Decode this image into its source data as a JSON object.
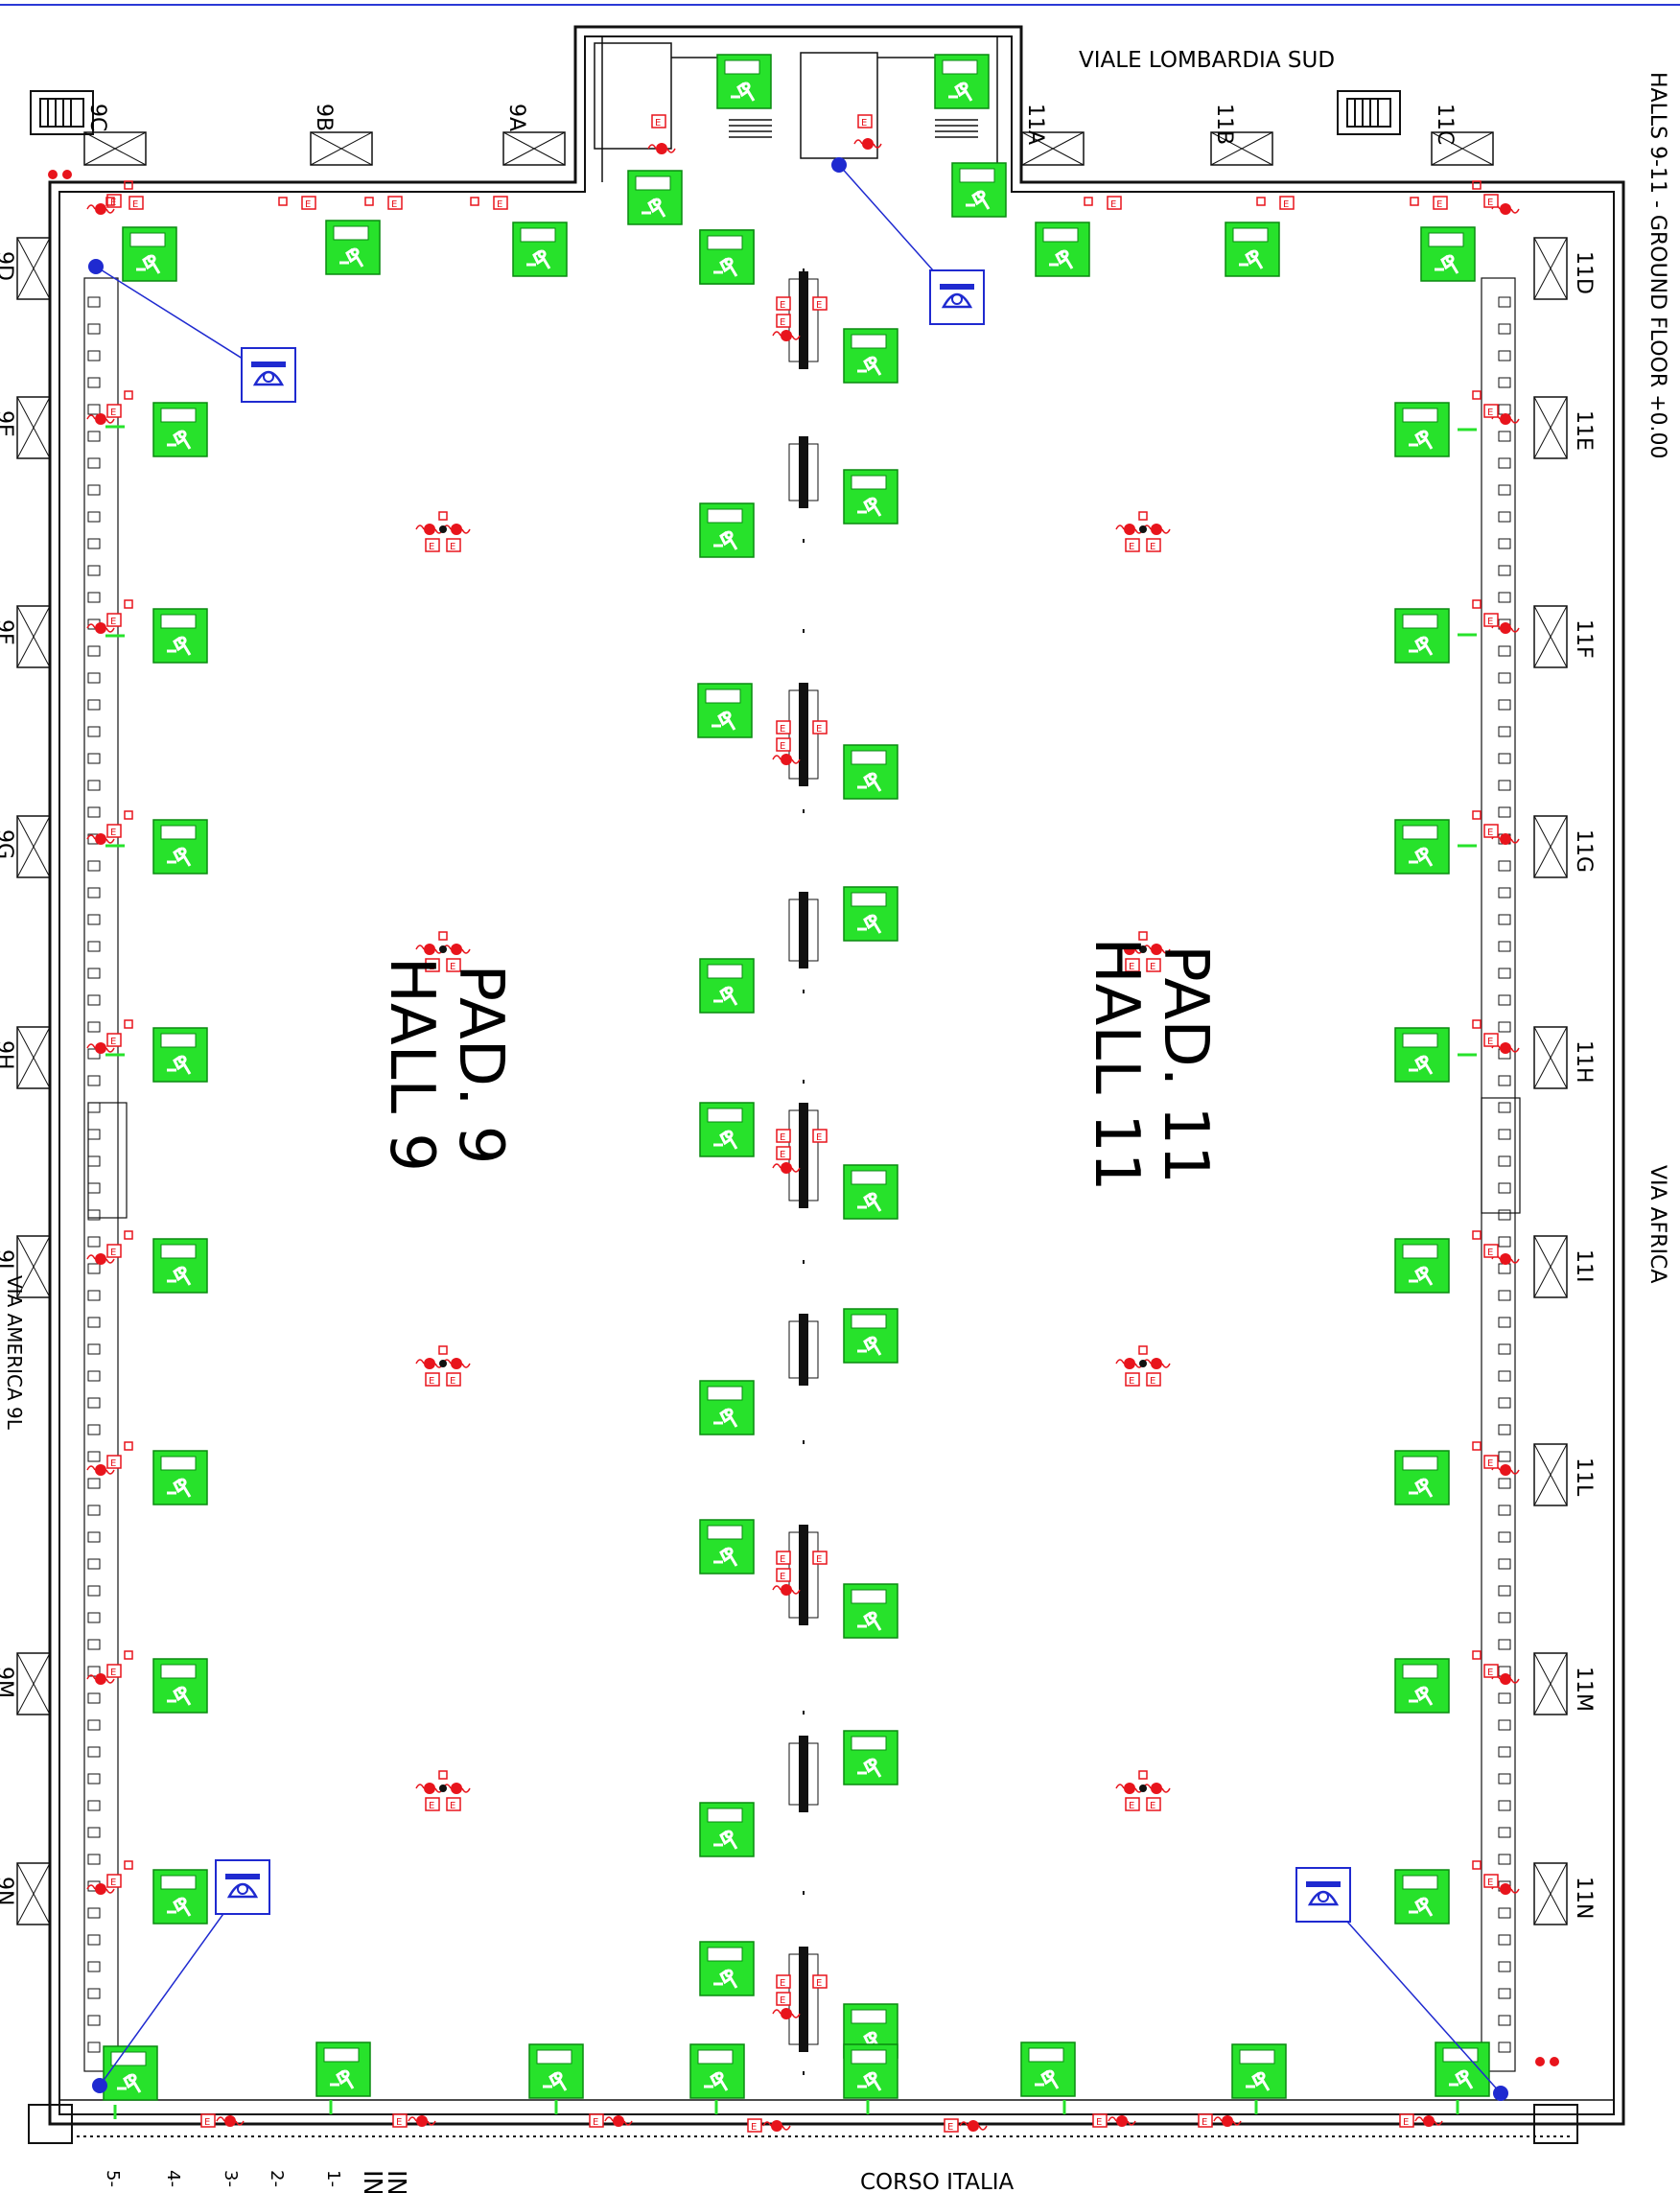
{
  "title": "HALLS  9-11 -  GROUND FLOOR +0.00",
  "streets": {
    "north": "VIALE LOMBARDIA SUD",
    "east": "VIA AFRICA",
    "south": "CORSO ITALIA",
    "west": "VIA AMERICA 9L"
  },
  "halls": {
    "hall9": {
      "pad": "PAD. 9",
      "name": "HALL 9"
    },
    "hall11": {
      "pad": "PAD. 11",
      "name": "HALL 11"
    }
  },
  "gates": {
    "north": [
      "9C",
      "9B",
      "9A",
      "11A",
      "11B",
      "11C"
    ],
    "west": [
      "9D",
      "9E",
      "9F",
      "9G",
      "9H",
      "9I",
      "9M",
      "9N"
    ],
    "east": [
      "11D",
      "11E",
      "11F",
      "11G",
      "11H",
      "11I",
      "11L",
      "11M",
      "11N"
    ]
  },
  "legend_fragment": [
    "IN",
    "IN",
    "1-",
    "2-",
    "3-",
    "4-",
    "5-"
  ],
  "extinguisher_letter": "E",
  "colors": {
    "exit_sign": "#27e22b",
    "fire": "#e8141c",
    "phone": "#1f2ad0",
    "wall": "#111111",
    "border": "#2a39d6"
  },
  "icons": {
    "exit": "emergency-exit-icon",
    "phone": "emergency-phone-icon",
    "extinguisher": "fire-extinguisher-icon",
    "hydrant": "fire-hydrant-icon",
    "stairs": "stairs-icon",
    "door": "door-icon",
    "toilet": "toilet-icon"
  }
}
